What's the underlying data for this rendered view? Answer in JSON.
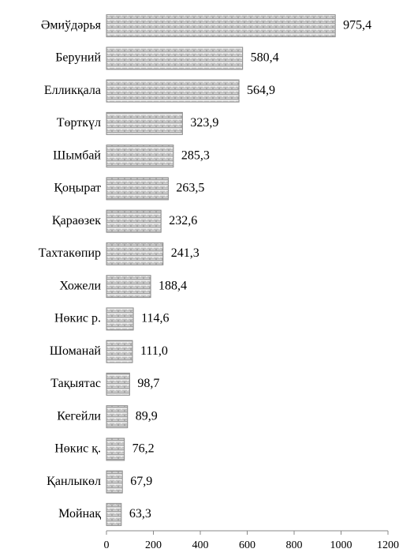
{
  "chart_data": {
    "type": "bar",
    "orientation": "horizontal",
    "categories": [
      "Әмиўдәрья",
      "Беруний",
      "Елликқала",
      "Төрткүл",
      "Шымбай",
      "Қоңырат",
      "Қараөзек",
      "Тахтакөпир",
      "Хожели",
      "Нөкис р.",
      "Шоманай",
      "Тақыятас",
      "Кегейли",
      "Нөкис қ.",
      "Қанлыкөл",
      "Мойнақ"
    ],
    "values": [
      975.4,
      580.4,
      564.9,
      323.9,
      285.3,
      263.5,
      232.6,
      241.3,
      188.4,
      114.6,
      111.0,
      98.7,
      89.9,
      76.2,
      67.9,
      63.3
    ],
    "value_labels": [
      "975,4",
      "580,4",
      "564,9",
      "323,9",
      "285,3",
      "263,5",
      "232,6",
      "241,3",
      "188,4",
      "114,6",
      "111,0",
      "98,7",
      "89,9",
      "76,2",
      "67,9",
      "63,3"
    ],
    "color": "#8a8a8a",
    "xlim": [
      0,
      1200
    ],
    "xticks": [
      0,
      200,
      400,
      600,
      800,
      1000,
      1200
    ]
  }
}
